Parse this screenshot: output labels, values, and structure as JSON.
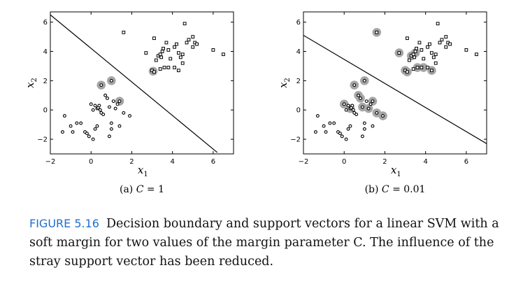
{
  "caption": {
    "label": "FIGURE 5.16",
    "text": "Decision boundary and support vectors for a linear SVM with a soft margin for two values of the margin parameter C. The influence of the stray support vector has been reduced."
  },
  "colors": {
    "support_halo": "#a6a6a6",
    "marker": "#000000",
    "boundary": "#000000"
  },
  "chart_data": [
    {
      "type": "scatter",
      "subtitle_prefix": "(a) ",
      "subtitle_var": "C",
      "subtitle_value": " = 1",
      "xlabel": "x1",
      "ylabel": "x2",
      "xlim": [
        -2,
        7
      ],
      "ylim": [
        -3,
        6.7
      ],
      "xticks": [
        -2,
        0,
        2,
        4,
        6
      ],
      "yticks": [
        -2,
        0,
        2,
        4,
        6
      ],
      "boundary": [
        [
          -2,
          6.5
        ],
        [
          6.2,
          -2.9
        ]
      ],
      "series": [
        {
          "marker": "circle",
          "points": [
            [
              -1.3,
              -0.4
            ],
            [
              -1.0,
              -1.1
            ],
            [
              -0.7,
              -0.9
            ],
            [
              -0.5,
              -0.9
            ],
            [
              -0.3,
              -1.5
            ],
            [
              -0.1,
              -1.8
            ],
            [
              0.2,
              -1.3
            ],
            [
              0.3,
              -1.1
            ],
            [
              0.1,
              -2.0
            ],
            [
              -0.2,
              -1.6
            ],
            [
              -1.4,
              -1.5
            ],
            [
              -0.9,
              -1.5
            ],
            [
              0,
              0.4
            ],
            [
              0.1,
              0
            ],
            [
              0.2,
              0.3
            ],
            [
              0.3,
              0.1
            ],
            [
              0.35,
              0.15
            ],
            [
              0.4,
              0.3
            ],
            [
              0.45,
              0.0
            ],
            [
              0.5,
              -0.2
            ],
            [
              0.6,
              -0.3
            ],
            [
              0.7,
              1.0
            ],
            [
              0.8,
              0.8
            ],
            [
              0.9,
              0.2
            ],
            [
              1.0,
              -0.9
            ],
            [
              1.0,
              -1.3
            ],
            [
              0.9,
              -1.8
            ],
            [
              1.1,
              0.6
            ],
            [
              1.2,
              0.1
            ],
            [
              1.3,
              0.4
            ],
            [
              1.4,
              -1.1
            ],
            [
              1.6,
              -0.2
            ],
            [
              1.9,
              -0.4
            ],
            [
              0.5,
              1.7
            ],
            [
              1.0,
              2.0
            ],
            [
              1.4,
              0.6
            ]
          ]
        },
        {
          "marker": "square",
          "points": [
            [
              1.6,
              5.3
            ],
            [
              2.7,
              3.9
            ],
            [
              3.0,
              2.7
            ],
            [
              3.1,
              2.6
            ],
            [
              3.1,
              4.9
            ],
            [
              3.2,
              3.4
            ],
            [
              3.3,
              3.7
            ],
            [
              3.4,
              3.8
            ],
            [
              3.45,
              3.6
            ],
            [
              3.5,
              4.0
            ],
            [
              3.55,
              4.2
            ],
            [
              3.4,
              2.8
            ],
            [
              3.6,
              2.9
            ],
            [
              3.7,
              4.6
            ],
            [
              3.8,
              4.1
            ],
            [
              3.8,
              2.9
            ],
            [
              3.9,
              3.5
            ],
            [
              4.1,
              2.9
            ],
            [
              4.1,
              4.3
            ],
            [
              4.2,
              4.5
            ],
            [
              4.3,
              3.9
            ],
            [
              4.3,
              2.7
            ],
            [
              4.4,
              3.6
            ],
            [
              4.5,
              3.2
            ],
            [
              4.5,
              3.8
            ],
            [
              4.6,
              5.9
            ],
            [
              4.7,
              4.6
            ],
            [
              4.8,
              4.8
            ],
            [
              5.0,
              4.3
            ],
            [
              5.0,
              5.0
            ],
            [
              5.1,
              4.6
            ],
            [
              5.2,
              4.5
            ],
            [
              6.0,
              4.1
            ],
            [
              6.5,
              3.8
            ]
          ]
        }
      ],
      "support_vectors": [
        [
          0.5,
          1.7
        ],
        [
          1.0,
          2.0
        ],
        [
          1.4,
          0.6
        ],
        [
          3.05,
          2.65
        ]
      ]
    },
    {
      "type": "scatter",
      "subtitle_prefix": "(b) ",
      "subtitle_var": "C",
      "subtitle_value": " = 0.01",
      "xlabel": "x1",
      "ylabel": "x2",
      "xlim": [
        -2,
        7
      ],
      "ylim": [
        -3,
        6.7
      ],
      "xticks": [
        -2,
        0,
        2,
        4,
        6
      ],
      "yticks": [
        -2,
        0,
        2,
        4,
        6
      ],
      "boundary": [
        [
          -2,
          5.1
        ],
        [
          7,
          -2.3
        ]
      ],
      "series": [
        {
          "marker": "circle",
          "points": [
            [
              -1.3,
              -0.4
            ],
            [
              -1.0,
              -1.1
            ],
            [
              -0.7,
              -0.9
            ],
            [
              -0.5,
              -0.9
            ],
            [
              -0.3,
              -1.5
            ],
            [
              -0.1,
              -1.8
            ],
            [
              0.2,
              -1.3
            ],
            [
              0.3,
              -1.1
            ],
            [
              0.1,
              -2.0
            ],
            [
              -0.2,
              -1.6
            ],
            [
              -1.4,
              -1.5
            ],
            [
              -0.9,
              -1.5
            ],
            [
              0,
              0.4
            ],
            [
              0.1,
              0
            ],
            [
              0.2,
              0.3
            ],
            [
              0.3,
              0.1
            ],
            [
              0.35,
              0.15
            ],
            [
              0.4,
              0.3
            ],
            [
              0.45,
              0.0
            ],
            [
              0.5,
              -0.2
            ],
            [
              0.6,
              -0.3
            ],
            [
              0.7,
              1.0
            ],
            [
              0.8,
              0.8
            ],
            [
              0.9,
              0.2
            ],
            [
              1.0,
              -0.9
            ],
            [
              1.0,
              -1.3
            ],
            [
              0.9,
              -1.8
            ],
            [
              1.1,
              0.6
            ],
            [
              1.2,
              0.1
            ],
            [
              1.3,
              0.4
            ],
            [
              1.4,
              -1.1
            ],
            [
              1.6,
              -0.2
            ],
            [
              1.9,
              -0.4
            ],
            [
              0.5,
              1.7
            ],
            [
              1.0,
              2.0
            ],
            [
              1.4,
              0.6
            ]
          ]
        },
        {
          "marker": "square",
          "points": [
            [
              1.6,
              5.3
            ],
            [
              2.7,
              3.9
            ],
            [
              3.0,
              2.7
            ],
            [
              3.1,
              2.6
            ],
            [
              3.1,
              4.9
            ],
            [
              3.2,
              3.4
            ],
            [
              3.3,
              3.7
            ],
            [
              3.4,
              3.8
            ],
            [
              3.45,
              3.6
            ],
            [
              3.5,
              4.0
            ],
            [
              3.55,
              4.2
            ],
            [
              3.4,
              2.8
            ],
            [
              3.6,
              2.9
            ],
            [
              3.7,
              4.6
            ],
            [
              3.8,
              4.1
            ],
            [
              3.8,
              2.9
            ],
            [
              3.9,
              3.5
            ],
            [
              4.1,
              2.9
            ],
            [
              4.1,
              4.3
            ],
            [
              4.2,
              4.5
            ],
            [
              4.3,
              3.9
            ],
            [
              4.3,
              2.7
            ],
            [
              4.4,
              3.6
            ],
            [
              4.5,
              3.2
            ],
            [
              4.5,
              3.8
            ],
            [
              4.6,
              5.9
            ],
            [
              4.7,
              4.6
            ],
            [
              4.8,
              4.8
            ],
            [
              5.0,
              4.3
            ],
            [
              5.0,
              5.0
            ],
            [
              5.1,
              4.6
            ],
            [
              5.2,
              4.5
            ],
            [
              6.0,
              4.1
            ],
            [
              6.5,
              3.8
            ]
          ]
        }
      ],
      "support_vectors": [
        [
          0.0,
          0.4
        ],
        [
          0.3,
          0.1
        ],
        [
          0.5,
          1.7
        ],
        [
          0.7,
          1.0
        ],
        [
          0.8,
          0.8
        ],
        [
          0.9,
          0.2
        ],
        [
          1.0,
          2.0
        ],
        [
          1.2,
          0.1
        ],
        [
          1.4,
          0.6
        ],
        [
          1.6,
          -0.2
        ],
        [
          1.9,
          -0.4
        ],
        [
          1.6,
          5.3
        ],
        [
          2.7,
          3.9
        ],
        [
          3.0,
          2.7
        ],
        [
          3.1,
          2.6
        ],
        [
          3.3,
          3.7
        ],
        [
          3.5,
          3.9
        ],
        [
          3.6,
          2.9
        ],
        [
          3.9,
          2.9
        ],
        [
          4.3,
          2.7
        ]
      ]
    }
  ]
}
